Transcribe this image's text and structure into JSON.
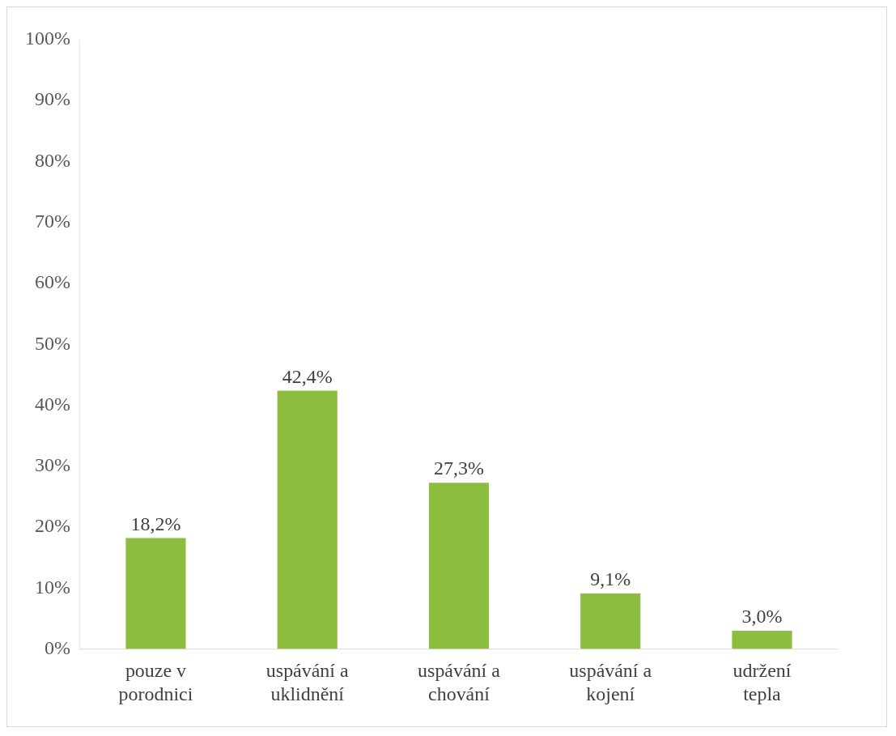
{
  "chart_data": {
    "type": "bar",
    "categories": [
      "pouze v porodnici",
      "uspávání a uklidnění",
      "uspávání a chování",
      "uspávání a kojení",
      "udržení tepla"
    ],
    "values": [
      18.2,
      42.4,
      27.3,
      9.1,
      3.0
    ],
    "color": "#8cbd3f",
    "value_labels": [
      "18,2%",
      "42,4%",
      "27,3%",
      "9,1%",
      "3,0%"
    ],
    "ylim": [
      0,
      100
    ],
    "yticks": [
      {
        "value": 0,
        "label": "0%"
      },
      {
        "value": 10,
        "label": "10%"
      },
      {
        "value": 20,
        "label": "20%"
      },
      {
        "value": 30,
        "label": "30%"
      },
      {
        "value": 40,
        "label": "40%"
      },
      {
        "value": 50,
        "label": "50%"
      },
      {
        "value": 60,
        "label": "60%"
      },
      {
        "value": 70,
        "label": "70%"
      },
      {
        "value": 80,
        "label": "80%"
      },
      {
        "value": 90,
        "label": "90%"
      },
      {
        "value": 100,
        "label": "100%"
      }
    ],
    "grid": false,
    "legend": false
  }
}
